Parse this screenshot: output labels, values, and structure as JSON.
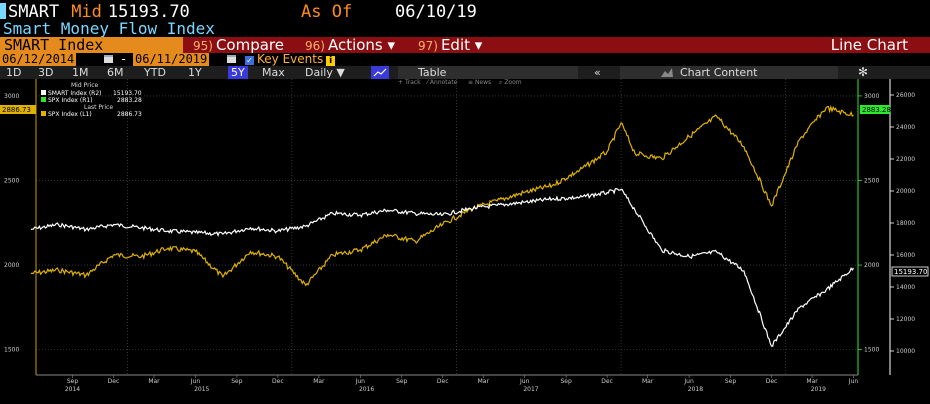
{
  "header": {
    "ticker": "SMART",
    "price_label": "Mid",
    "price_value": "15193.70",
    "asof_label": "As Of",
    "asof_date": "06/10/19",
    "index_name": "Smart Money Flow Index"
  },
  "command_bar": {
    "security": "SMART Index",
    "compare_num": "95)",
    "compare_label": "Compare",
    "actions_num": "96)",
    "actions_label": "Actions ▾",
    "edit_num": "97)",
    "edit_label": "Edit ▾",
    "chart_type": "Line Chart"
  },
  "date_range": {
    "start": "06/12/2014",
    "separator": "-",
    "end": "06/11/2019",
    "key_events": "Key Events"
  },
  "toolbar": {
    "ranges": [
      "1D",
      "3D",
      "1M",
      "6M",
      "YTD",
      "1Y",
      "5Y",
      "Max"
    ],
    "selected_range": "5Y",
    "frequency": "Daily ▼",
    "table_label": "Table",
    "collapse_icon": "«",
    "chart_content_label": "Chart Content",
    "chart_icon": "mountain-chart-icon",
    "settings_icon": "gear-icon"
  },
  "chart_tools": {
    "track": "Track",
    "annotate": "Annotate",
    "news": "News",
    "zoom": "Zoom"
  },
  "legend": {
    "group1_title": "Mid Price",
    "item1_label": "SMART Index  (R2)",
    "item1_value": "15193.70",
    "item2_label": "SPX Index  (R1)",
    "item2_value": "2883.28",
    "group2_title": "Last Price",
    "item3_label": "SPX Index  (L1)",
    "item3_value": "2886.73"
  },
  "colors": {
    "smart": "#ffffff",
    "spx": "#e0b200",
    "right_axis": "#2ee82e",
    "command_bar": "#8a0e12",
    "accent_orange": "#e58a1c"
  },
  "chart_data": {
    "type": "line",
    "x_range": [
      "2014-06-12",
      "2019-06-11"
    ],
    "left_axis": {
      "ticks": [
        1500,
        2000,
        2500,
        3000
      ]
    },
    "right_axis_r1": {
      "ticks": [
        1500,
        2000,
        2500,
        3000
      ]
    },
    "right_axis_r2": {
      "ticks": [
        10000,
        12000,
        14000,
        16000,
        18000,
        20000,
        22000,
        24000,
        26000
      ]
    },
    "last_value_tags": {
      "left": "2886.73",
      "right_r1": "2883.28",
      "right_r2": "15193.70"
    },
    "x_month_labels": [
      "Jun",
      "Sep",
      "Dec",
      "Mar",
      "Jun",
      "Sep",
      "Dec",
      "Mar",
      "Jun",
      "Sep",
      "Dec",
      "Mar",
      "Jun",
      "Sep",
      "Dec",
      "Mar",
      "Jun",
      "Sep",
      "Dec",
      "Mar",
      "Jun"
    ],
    "x_year_labels": [
      "2014",
      "2015",
      "2016",
      "2017",
      "2018",
      "2019"
    ],
    "grid": true,
    "legend_position": "top-left",
    "series": [
      {
        "name": "SMART Index (R2)",
        "x": [
          "2014-06",
          "2014-08",
          "2014-10",
          "2014-12",
          "2015-02",
          "2015-04",
          "2015-06",
          "2015-08",
          "2015-10",
          "2015-12",
          "2016-02",
          "2016-04",
          "2016-06",
          "2016-08",
          "2016-10",
          "2016-12",
          "2017-02",
          "2017-04",
          "2017-06",
          "2017-08",
          "2017-10",
          "2017-12",
          "2018-01",
          "2018-02",
          "2018-04",
          "2018-06",
          "2018-08",
          "2018-10",
          "2018-12",
          "2019-02",
          "2019-04",
          "2019-06"
        ],
        "values": [
          17600,
          17900,
          17600,
          17900,
          17700,
          17500,
          17400,
          17300,
          17700,
          17500,
          17800,
          18600,
          18500,
          18800,
          18600,
          18500,
          18900,
          19100,
          19300,
          19500,
          19600,
          19900,
          20100,
          18800,
          16300,
          15900,
          16200,
          15000,
          10300,
          12700,
          13800,
          15190
        ]
      },
      {
        "name": "SPX Index (L1)",
        "x": [
          "2014-06",
          "2014-08",
          "2014-10",
          "2014-12",
          "2015-02",
          "2015-04",
          "2015-06",
          "2015-08",
          "2015-10",
          "2015-12",
          "2016-02",
          "2016-04",
          "2016-06",
          "2016-08",
          "2016-10",
          "2016-12",
          "2017-02",
          "2017-04",
          "2017-06",
          "2017-08",
          "2017-10",
          "2017-12",
          "2018-01",
          "2018-02",
          "2018-04",
          "2018-06",
          "2018-08",
          "2018-10",
          "2018-12",
          "2019-02",
          "2019-04",
          "2019-06"
        ],
        "values": [
          1950,
          1970,
          1940,
          2060,
          2050,
          2100,
          2080,
          1930,
          2080,
          2050,
          1880,
          2060,
          2090,
          2180,
          2140,
          2240,
          2330,
          2380,
          2430,
          2470,
          2560,
          2670,
          2840,
          2660,
          2630,
          2760,
          2880,
          2700,
          2350,
          2740,
          2930,
          2886
        ]
      }
    ]
  }
}
